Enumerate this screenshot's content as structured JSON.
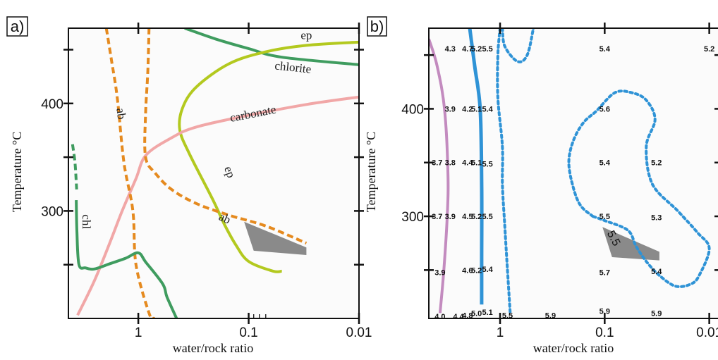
{
  "chart_data": [
    {
      "type": "line",
      "panel_label": "a)",
      "xlabel": "water/rock ratio",
      "ylabel": "Temperature °C",
      "x_scale": "log-reversed",
      "xlim": [
        4.3,
        0.01
      ],
      "ylim": [
        200,
        470
      ],
      "x_ticks": [
        {
          "v": 1,
          "label": "1"
        },
        {
          "v": 0.1,
          "label": "0.1"
        },
        {
          "v": 0.01,
          "label": "0.01"
        }
      ],
      "y_ticks": [
        {
          "v": 300,
          "label": "300"
        },
        {
          "v": 400,
          "label": "400"
        }
      ],
      "series": [
        {
          "name": "chlorite",
          "color": "#3f9c5f",
          "dash": "solid",
          "width": 4,
          "points": [
            [
              0.38,
              470
            ],
            [
              0.2,
              460
            ],
            [
              0.1,
              451
            ],
            [
              0.05,
              443
            ],
            [
              0.01,
              436
            ]
          ]
        },
        {
          "name": "ep",
          "color": "#b3c91f",
          "dash": "solid",
          "width": 4,
          "points": [
            [
              0.01,
              457
            ],
            [
              0.03,
              454
            ],
            [
              0.07,
              448
            ],
            [
              0.15,
              437
            ],
            [
              0.3,
              415
            ],
            [
              0.4,
              395
            ],
            [
              0.42,
              375
            ],
            [
              0.34,
              352
            ],
            [
              0.21,
              310
            ],
            [
              0.165,
              287
            ],
            [
              0.13,
              268
            ],
            [
              0.1,
              253
            ],
            [
              0.06,
              244
            ],
            [
              0.05,
              244
            ]
          ]
        },
        {
          "name": "carbonate",
          "color": "#f1a7a7",
          "dash": "solid",
          "width": 4,
          "points": [
            [
              3.55,
              203
            ],
            [
              2.5,
              235
            ],
            [
              1.85,
              268
            ],
            [
              1.4,
              300
            ],
            [
              1.05,
              330
            ],
            [
              0.85,
              352
            ],
            [
              0.5,
              368
            ],
            [
              0.3,
              378
            ],
            [
              0.1,
              389
            ],
            [
              0.03,
              399
            ],
            [
              0.01,
              406
            ]
          ]
        },
        {
          "name": "ab",
          "color": "#e58a1f",
          "dash": "dashed",
          "width": 4,
          "points": [
            [
              1.95,
              470
            ],
            [
              1.75,
              440
            ],
            [
              1.55,
              405
            ],
            [
              1.35,
              345
            ],
            [
              1.12,
              300
            ],
            [
              1.05,
              250
            ],
            [
              0.8,
              205
            ],
            [
              0.72,
              200
            ]
          ]
        },
        {
          "name": "ab",
          "color": "#e58a1f",
          "dash": "dashed",
          "width": 4,
          "points": [
            [
              0.8,
              470
            ],
            [
              0.82,
              430
            ],
            [
              0.86,
              390
            ],
            [
              0.86,
              350
            ],
            [
              0.7,
              335
            ],
            [
              0.5,
              320
            ],
            [
              0.3,
              307
            ],
            [
              0.15,
              296
            ],
            [
              0.07,
              286
            ],
            [
              0.03,
              270
            ]
          ]
        },
        {
          "name": "chl",
          "color": "#3f9c5f",
          "dash": "solid",
          "width": 4,
          "points": [
            [
              3.65,
              310
            ],
            [
              3.6,
              280
            ],
            [
              3.45,
              250
            ],
            [
              3.0,
              247
            ],
            [
              2.5,
              246
            ],
            [
              1.8,
              251
            ],
            [
              1.3,
              256
            ],
            [
              1.0,
              261
            ],
            [
              0.85,
              252
            ],
            [
              0.6,
              232
            ],
            [
              0.55,
              220
            ],
            [
              0.45,
              200
            ]
          ]
        },
        {
          "name": "chl",
          "color": "#3f9c5f",
          "dash": "dashed",
          "width": 4,
          "points": [
            [
              3.95,
              362
            ],
            [
              3.75,
              345
            ],
            [
              3.62,
              320
            ]
          ]
        }
      ],
      "shaded_region": {
        "color": "#8a8a8a",
        "points": [
          [
            0.11,
            290
          ],
          [
            0.03,
            266
          ],
          [
            0.03,
            259
          ],
          [
            0.09,
            263
          ]
        ]
      },
      "annotations": [
        {
          "text": "ep",
          "x": 0.03,
          "y": 460
        },
        {
          "text": "chlorite",
          "x": 0.04,
          "y": 430
        },
        {
          "text": "carbonate",
          "x": 0.09,
          "y": 387
        },
        {
          "text": "ab",
          "x": 1.55,
          "y": 390
        },
        {
          "text": "ep",
          "x": 0.16,
          "y": 335
        },
        {
          "text": "ab",
          "x": 0.17,
          "y": 290
        },
        {
          "text": "chl",
          "x": 3.2,
          "y": 290
        }
      ]
    },
    {
      "type": "line",
      "panel_label": "b)",
      "xlabel": "water/rock ratio",
      "ylabel": "Temperature °C",
      "x_scale": "log-reversed",
      "xlim": [
        4.8,
        0.008
      ],
      "ylim": [
        205,
        475
      ],
      "x_ticks": [
        {
          "v": 1,
          "label": "1"
        },
        {
          "v": 0.1,
          "label": "0.1"
        },
        {
          "v": 0.01,
          "label": "0.01"
        }
      ],
      "y_ticks": [
        {
          "v": 300,
          "label": "300"
        },
        {
          "v": 400,
          "label": "400"
        }
      ],
      "series": [
        {
          "name": "",
          "color": "#c38bbf",
          "dash": "solid",
          "width": 4,
          "points": [
            [
              4.8,
              465
            ],
            [
              4.0,
              440
            ],
            [
              3.4,
              400
            ],
            [
              3.15,
              340
            ],
            [
              3.2,
              300
            ],
            [
              3.45,
              250
            ],
            [
              3.75,
              210
            ]
          ]
        },
        {
          "name": "",
          "color": "#2f93d6",
          "dash": "solid",
          "width": 5,
          "points": [
            [
              1.95,
              475
            ],
            [
              1.75,
              440
            ],
            [
              1.55,
              400
            ],
            [
              1.5,
              330
            ],
            [
              1.5,
              260
            ],
            [
              1.5,
              218
            ]
          ]
        },
        {
          "name": "",
          "color": "#2f93d6",
          "dash": "dotted",
          "width": 4,
          "points": [
            [
              0.95,
              475
            ],
            [
              0.9,
              458
            ],
            [
              0.68,
              444
            ],
            [
              0.55,
              450
            ],
            [
              0.48,
              475
            ]
          ]
        },
        {
          "name": "",
          "color": "#2f93d6",
          "dash": "dotted",
          "width": 4,
          "points": [
            [
              1.0,
              475
            ],
            [
              1.05,
              450
            ],
            [
              1.05,
              410
            ],
            [
              0.95,
              365
            ],
            [
              0.95,
              330
            ],
            [
              0.9,
              290
            ],
            [
              0.85,
              250
            ],
            [
              0.8,
              210
            ]
          ]
        },
        {
          "name": "",
          "color": "#2f93d6",
          "dash": "dotted",
          "width": 4,
          "points": [
            [
              0.13,
              300
            ],
            [
              0.17,
              310
            ],
            [
              0.2,
              327
            ],
            [
              0.22,
              350
            ],
            [
              0.2,
              370
            ],
            [
              0.16,
              387
            ],
            [
              0.12,
              398
            ],
            [
              0.08,
              415
            ],
            [
              0.055,
              415
            ],
            [
              0.04,
              408
            ],
            [
              0.033,
              390
            ],
            [
              0.04,
              365
            ],
            [
              0.035,
              330
            ],
            [
              0.02,
              305
            ],
            [
              0.013,
              285
            ],
            [
              0.01,
              270
            ],
            [
              0.0125,
              245
            ],
            [
              0.015,
              237
            ],
            [
              0.021,
              235
            ],
            [
              0.03,
              245
            ],
            [
              0.04,
              258
            ],
            [
              0.05,
              272
            ],
            [
              0.06,
              287
            ],
            [
              0.1,
              296
            ],
            [
              0.13,
              300
            ]
          ]
        }
      ],
      "shaded_region": {
        "color": "#8a8a8a",
        "points": [
          [
            0.105,
            290
          ],
          [
            0.03,
            267
          ],
          [
            0.03,
            259
          ],
          [
            0.085,
            262
          ]
        ]
      },
      "contour_label": {
        "text": "5.5",
        "x": 0.088,
        "y": 278
      },
      "value_labels": [
        {
          "text": "4.3",
          "x": 3.0,
          "y": 456
        },
        {
          "text": "4.7",
          "x": 2.05,
          "y": 456
        },
        {
          "text": "5.2",
          "x": 1.68,
          "y": 456
        },
        {
          "text": "5.5",
          "x": 1.32,
          "y": 456
        },
        {
          "text": "5.4",
          "x": 0.1,
          "y": 456
        },
        {
          "text": "5.2",
          "x": 0.01,
          "y": 456
        },
        {
          "text": "3.9",
          "x": 3.0,
          "y": 400
        },
        {
          "text": "4.2",
          "x": 2.05,
          "y": 400
        },
        {
          "text": "5.1",
          "x": 1.68,
          "y": 400
        },
        {
          "text": "5.4",
          "x": 1.32,
          "y": 400
        },
        {
          "text": "5.6",
          "x": 0.1,
          "y": 400
        },
        {
          "text": "3.7",
          "x": 4.0,
          "y": 350
        },
        {
          "text": "3.8",
          "x": 3.0,
          "y": 350
        },
        {
          "text": "4.4",
          "x": 2.05,
          "y": 350
        },
        {
          "text": "5.1",
          "x": 1.68,
          "y": 350
        },
        {
          "text": "5.5",
          "x": 1.32,
          "y": 349
        },
        {
          "text": "5.4",
          "x": 0.1,
          "y": 350
        },
        {
          "text": "5.2",
          "x": 0.032,
          "y": 350
        },
        {
          "text": "3.7",
          "x": 4.0,
          "y": 300
        },
        {
          "text": "3.9",
          "x": 3.0,
          "y": 300
        },
        {
          "text": "4.5",
          "x": 2.05,
          "y": 300
        },
        {
          "text": "5.2",
          "x": 1.68,
          "y": 300
        },
        {
          "text": "5.5",
          "x": 1.32,
          "y": 300
        },
        {
          "text": "5.5",
          "x": 0.1,
          "y": 300
        },
        {
          "text": "5.3",
          "x": 0.032,
          "y": 299
        },
        {
          "text": "3.9",
          "x": 3.75,
          "y": 248
        },
        {
          "text": "4.6",
          "x": 2.05,
          "y": 250
        },
        {
          "text": "5.2",
          "x": 1.68,
          "y": 250
        },
        {
          "text": "5.4",
          "x": 1.32,
          "y": 251
        },
        {
          "text": "5.7",
          "x": 0.1,
          "y": 248
        },
        {
          "text": "5.4",
          "x": 0.032,
          "y": 249
        },
        {
          "text": "4.0",
          "x": 3.75,
          "y": 207
        },
        {
          "text": "4.4",
          "x": 2.5,
          "y": 207
        },
        {
          "text": "4.8",
          "x": 2.05,
          "y": 208
        },
        {
          "text": "5.0",
          "x": 1.68,
          "y": 210
        },
        {
          "text": "5.1",
          "x": 1.32,
          "y": 211
        },
        {
          "text": "5.5",
          "x": 0.85,
          "y": 208
        },
        {
          "text": "5.9",
          "x": 0.33,
          "y": 208
        },
        {
          "text": "5.9",
          "x": 0.1,
          "y": 212
        },
        {
          "text": "5.9",
          "x": 0.032,
          "y": 210
        }
      ]
    }
  ]
}
